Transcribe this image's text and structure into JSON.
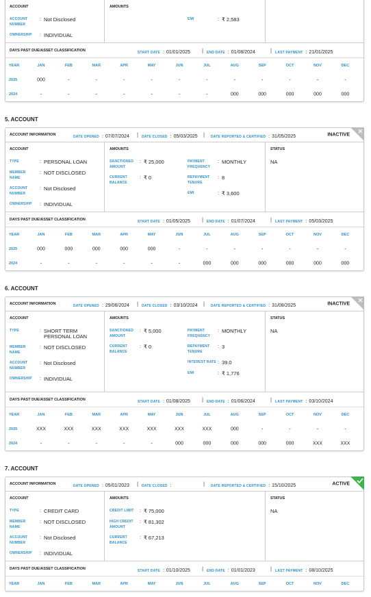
{
  "labels": {
    "account": "ACCOUNT",
    "amounts": "AMOUNTS",
    "status": "STATUS",
    "account_information": "ACCOUNT INFORMATION",
    "dpd": "DAYS PAST DUE/ASSET CLASSIFICATION",
    "date_opened": "DATE OPENED",
    "date_closed": "DATE CLOSED",
    "date_reported": "DATE REPORTED & CERTIFIED",
    "start_date": "START DATE",
    "end_date": "END DATE",
    "last_payment": "LAST PAYMENT",
    "year": "YEAR",
    "colon": ":",
    "pipe": "|"
  },
  "months": [
    "JAN",
    "FEB",
    "MAR",
    "APR",
    "MAY",
    "JUN",
    "JUL",
    "AUG",
    "SEP",
    "OCT",
    "NOV",
    "DEC"
  ],
  "sections": [
    {
      "fields": [
        {
          "label": "ACCOUNT NUMBER",
          "value": "Not Disclosed"
        },
        {
          "label": "OWNERSHIP",
          "value": "INDIVIDUAL"
        }
      ],
      "amounts": {
        "right": [
          {
            "label": "EMI",
            "value": "₹ 2,583"
          }
        ]
      },
      "dpd": {
        "start_date": "01/01/2025",
        "end_date": "01/08/2024",
        "last_payment": "21/01/2025"
      },
      "history": [
        {
          "year": "2025",
          "values": [
            "000",
            "-",
            "-",
            "-",
            "-",
            "-",
            "-",
            "-",
            "-",
            "-",
            "-",
            "-"
          ]
        },
        {
          "year": "2024",
          "values": [
            "-",
            "-",
            "-",
            "-",
            "-",
            "-",
            "-",
            "000",
            "000",
            "000",
            "000",
            "000"
          ]
        }
      ]
    },
    {
      "heading": "5. ACCOUNT",
      "info": {
        "date_opened": "07/07/2024",
        "date_closed": "05/03/2025",
        "date_reported": "31/05/2025",
        "state": "INACTIVE",
        "active": false
      },
      "fields": [
        {
          "label": "TYPE",
          "value": "PERSONAL LOAN"
        },
        {
          "label": "MEMBER NAME",
          "value": "NOT DISCLOSED"
        },
        {
          "label": "ACCOUNT NUMBER",
          "value": "Not Disclosed"
        },
        {
          "label": "OWNERSHIP",
          "value": "INDIVIDUAL"
        }
      ],
      "amounts": {
        "left": [
          {
            "label": "SANCTIONED AMOUNT",
            "value": "₹ 25,000"
          },
          {
            "label": "CURRENT BALANCE",
            "value": "₹ 0"
          }
        ],
        "right": [
          {
            "label": "PAYMENT FREQUENCY",
            "value": "MONTHLY"
          },
          {
            "label": "REPAYMENT TENURE",
            "value": "8"
          },
          {
            "label": "EMI",
            "value": "₹ 3,600"
          }
        ]
      },
      "status": "NA",
      "dpd": {
        "start_date": "01/05/2025",
        "end_date": "01/07/2024",
        "last_payment": "05/03/2025"
      },
      "history": [
        {
          "year": "2025",
          "values": [
            "000",
            "000",
            "000",
            "000",
            "000",
            "-",
            "-",
            "-",
            "-",
            "-",
            "-",
            "-"
          ]
        },
        {
          "year": "2024",
          "values": [
            "-",
            "-",
            "-",
            "-",
            "-",
            "-",
            "000",
            "000",
            "000",
            "000",
            "000",
            "000"
          ]
        }
      ]
    },
    {
      "heading": "6. ACCOUNT",
      "info": {
        "date_opened": "29/06/2024",
        "date_closed": "03/10/2024",
        "date_reported": "31/08/2025",
        "state": "INACTIVE",
        "active": false
      },
      "fields": [
        {
          "label": "TYPE",
          "value": "SHORT TERM PERSONAL LOAN"
        },
        {
          "label": "MEMBER NAME",
          "value": "NOT DISCLOSED"
        },
        {
          "label": "ACCOUNT NUMBER",
          "value": "Not Disclosed"
        },
        {
          "label": "OWNERSHIP",
          "value": "INDIVIDUAL"
        }
      ],
      "amounts": {
        "left": [
          {
            "label": "SANCTIONED AMOUNT",
            "value": "₹ 5,000"
          },
          {
            "label": "CURRENT BALANCE",
            "value": "₹ 0"
          }
        ],
        "right": [
          {
            "label": "PAYMENT FREQUENCY",
            "value": "MONTHLY"
          },
          {
            "label": "REPAYMENT TENURE",
            "value": "3"
          },
          {
            "label": "INTEREST RATE",
            "value": "39.0"
          },
          {
            "label": "EMI",
            "value": "₹ 1,776"
          }
        ]
      },
      "status": "NA",
      "dpd": {
        "start_date": "01/08/2025",
        "end_date": "01/06/2024",
        "last_payment": "03/10/2024"
      },
      "history": [
        {
          "year": "2025",
          "values": [
            "XXX",
            "XXX",
            "XXX",
            "XXX",
            "XXX",
            "XXX",
            "XXX",
            "000",
            "-",
            "-",
            "-",
            "-"
          ]
        },
        {
          "year": "2024",
          "values": [
            "-",
            "-",
            "-",
            "-",
            "-",
            "000",
            "000",
            "000",
            "000",
            "000",
            "XXX",
            "XXX"
          ]
        }
      ]
    },
    {
      "heading": "7. ACCOUNT",
      "info": {
        "date_opened": "05/01/2023",
        "date_reported": "15/10/2025",
        "state": "ACTIVE",
        "active": true
      },
      "fields": [
        {
          "label": "TYPE",
          "value": "CREDIT CARD"
        },
        {
          "label": "MEMBER NAME",
          "value": "NOT DISCLOSED"
        },
        {
          "label": "ACCOUNT NUMBER",
          "value": "Not Disclosed"
        },
        {
          "label": "OWNERSHIP",
          "value": "INDIVIDUAL"
        }
      ],
      "amounts": {
        "left": [
          {
            "label": "CREDIT LIMIT",
            "value": "₹ 75,000"
          },
          {
            "label": "HIGH CREDIT AMOUNT",
            "value": "₹ 81,302"
          },
          {
            "label": "CURRENT BALANCE",
            "value": "₹ 67,213"
          }
        ]
      },
      "status": "NA",
      "dpd": {
        "start_date": "01/10/2025",
        "end_date": "01/01/2023",
        "last_payment": "08/10/2025"
      }
    }
  ]
}
